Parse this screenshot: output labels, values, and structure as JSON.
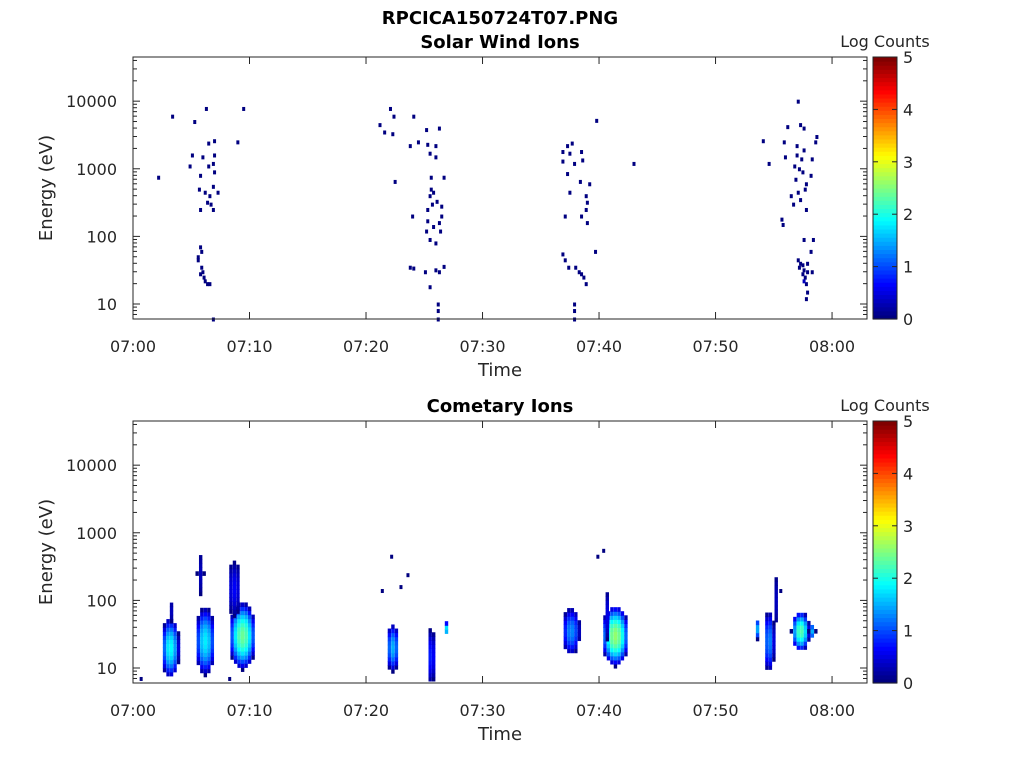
{
  "figure_title": "RPCICA150724T07.PNG",
  "chart_data": [
    {
      "type": "heatmap",
      "title": "Solar Wind Ions",
      "xlabel": "Time",
      "ylabel": "Energy (eV)",
      "x_ticks": [
        "07:00",
        "07:10",
        "07:20",
        "07:30",
        "07:40",
        "07:50",
        "08:00"
      ],
      "x_tick_minutes": [
        0,
        10,
        20,
        30,
        40,
        50,
        60
      ],
      "xlim_minutes": [
        0,
        63
      ],
      "yscale": "log",
      "ylim": [
        6,
        45000
      ],
      "y_ticks": [
        "10",
        "100",
        "1000",
        "10000"
      ],
      "y_tick_values": [
        10,
        100,
        1000,
        10000
      ],
      "colorbar": {
        "label": "Log Counts",
        "ticks": [
          "0",
          "1",
          "2",
          "3",
          "4",
          "5"
        ],
        "range": [
          0,
          5
        ],
        "colormap": "jet"
      },
      "cells": [
        [
          2.2,
          750,
          0
        ],
        [
          3.4,
          6000,
          0
        ],
        [
          5.3,
          5000,
          0
        ],
        [
          6.3,
          7800,
          0
        ],
        [
          9.5,
          7800,
          0
        ],
        [
          9.0,
          2500,
          0
        ],
        [
          6.5,
          2400,
          0
        ],
        [
          7.0,
          2600,
          0
        ],
        [
          5.1,
          1600,
          0
        ],
        [
          6.0,
          1500,
          0
        ],
        [
          7.0,
          1600,
          0
        ],
        [
          4.9,
          1100,
          0
        ],
        [
          6.5,
          1100,
          0
        ],
        [
          6.9,
          1200,
          0
        ],
        [
          5.8,
          800,
          0
        ],
        [
          7.0,
          900,
          0
        ],
        [
          5.7,
          500,
          0
        ],
        [
          6.2,
          450,
          0
        ],
        [
          6.6,
          400,
          0
        ],
        [
          6.9,
          550,
          0
        ],
        [
          7.3,
          450,
          0
        ],
        [
          6.4,
          320,
          0
        ],
        [
          6.7,
          300,
          0
        ],
        [
          5.8,
          250,
          0
        ],
        [
          6.9,
          250,
          0
        ],
        [
          5.8,
          70,
          0
        ],
        [
          5.9,
          60,
          0
        ],
        [
          5.6,
          50,
          0
        ],
        [
          5.6,
          45,
          0
        ],
        [
          5.9,
          35,
          0
        ],
        [
          6.0,
          30,
          0
        ],
        [
          5.8,
          28,
          0
        ],
        [
          6.1,
          25,
          0
        ],
        [
          6.2,
          22,
          0
        ],
        [
          6.4,
          20,
          0
        ],
        [
          6.6,
          20,
          0
        ],
        [
          6.9,
          6,
          0
        ],
        [
          21.2,
          4500,
          0
        ],
        [
          22.1,
          7800,
          0
        ],
        [
          22.4,
          6000,
          0
        ],
        [
          21.6,
          3500,
          0
        ],
        [
          22.3,
          3300,
          0
        ],
        [
          24.1,
          6000,
          0
        ],
        [
          25.2,
          3800,
          0
        ],
        [
          26.3,
          4000,
          0
        ],
        [
          23.8,
          2200,
          0
        ],
        [
          24.5,
          2500,
          0
        ],
        [
          25.3,
          2300,
          0
        ],
        [
          26.0,
          2200,
          0
        ],
        [
          25.5,
          1700,
          0
        ],
        [
          26.0,
          1500,
          0
        ],
        [
          25.6,
          750,
          0
        ],
        [
          26.7,
          750,
          0
        ],
        [
          22.5,
          650,
          0
        ],
        [
          25.6,
          500,
          0
        ],
        [
          25.8,
          450,
          0
        ],
        [
          25.5,
          400,
          0
        ],
        [
          26.1,
          330,
          0
        ],
        [
          25.7,
          300,
          0
        ],
        [
          26.5,
          280,
          0
        ],
        [
          25.3,
          250,
          0
        ],
        [
          24.0,
          200,
          0
        ],
        [
          25.3,
          170,
          0
        ],
        [
          26.5,
          200,
          0
        ],
        [
          26.3,
          160,
          0
        ],
        [
          25.8,
          140,
          0
        ],
        [
          25.2,
          120,
          0
        ],
        [
          26.4,
          120,
          0
        ],
        [
          25.5,
          90,
          0
        ],
        [
          26.0,
          80,
          0
        ],
        [
          23.8,
          35,
          0
        ],
        [
          24.1,
          34,
          0
        ],
        [
          25.1,
          30,
          0
        ],
        [
          26.0,
          32,
          0
        ],
        [
          26.3,
          30,
          0
        ],
        [
          26.7,
          36,
          0
        ],
        [
          25.5,
          18,
          0
        ],
        [
          26.2,
          10,
          0
        ],
        [
          26.2,
          8,
          0
        ],
        [
          26.2,
          6,
          0
        ],
        [
          37.3,
          2200,
          0
        ],
        [
          37.7,
          2400,
          0
        ],
        [
          36.9,
          1800,
          0
        ],
        [
          37.5,
          1700,
          0
        ],
        [
          38.5,
          1800,
          0
        ],
        [
          36.9,
          1300,
          0
        ],
        [
          37.9,
          1200,
          0
        ],
        [
          38.6,
          1350,
          0
        ],
        [
          39.8,
          5200,
          0
        ],
        [
          43.0,
          1200,
          0
        ],
        [
          37.3,
          850,
          0
        ],
        [
          38.4,
          650,
          0
        ],
        [
          39.2,
          600,
          0
        ],
        [
          37.5,
          450,
          0
        ],
        [
          38.9,
          400,
          0
        ],
        [
          39.0,
          320,
          0
        ],
        [
          38.9,
          250,
          0
        ],
        [
          37.1,
          200,
          0
        ],
        [
          38.5,
          200,
          0
        ],
        [
          39.0,
          160,
          0
        ],
        [
          39.7,
          60,
          0
        ],
        [
          36.9,
          55,
          0
        ],
        [
          37.1,
          45,
          0
        ],
        [
          37.4,
          35,
          0
        ],
        [
          38.0,
          35,
          0
        ],
        [
          38.3,
          30,
          0
        ],
        [
          38.5,
          28,
          0
        ],
        [
          38.7,
          25,
          0
        ],
        [
          38.9,
          20,
          0
        ],
        [
          37.9,
          10,
          0
        ],
        [
          37.9,
          8,
          0
        ],
        [
          37.9,
          6,
          0
        ],
        [
          57.1,
          10000,
          0
        ],
        [
          54.1,
          2600,
          0
        ],
        [
          56.2,
          4200,
          0
        ],
        [
          57.3,
          4500,
          0
        ],
        [
          57.6,
          4000,
          0
        ],
        [
          58.7,
          3000,
          0
        ],
        [
          55.9,
          2500,
          0
        ],
        [
          57.0,
          2200,
          0
        ],
        [
          58.6,
          2500,
          0
        ],
        [
          57.6,
          1900,
          0
        ],
        [
          57.0,
          1600,
          0
        ],
        [
          56.0,
          1500,
          0
        ],
        [
          57.4,
          1400,
          0
        ],
        [
          58.3,
          1400,
          0
        ],
        [
          54.6,
          1200,
          0
        ],
        [
          56.8,
          1100,
          0
        ],
        [
          57.2,
          1000,
          0
        ],
        [
          57.5,
          900,
          0
        ],
        [
          58.2,
          800,
          0
        ],
        [
          56.9,
          700,
          0
        ],
        [
          57.8,
          600,
          0
        ],
        [
          57.7,
          500,
          0
        ],
        [
          57.1,
          450,
          0
        ],
        [
          56.5,
          400,
          0
        ],
        [
          57.3,
          350,
          0
        ],
        [
          56.7,
          300,
          0
        ],
        [
          57.8,
          250,
          0
        ],
        [
          55.7,
          180,
          0
        ],
        [
          55.8,
          150,
          0
        ],
        [
          57.6,
          90,
          0
        ],
        [
          58.4,
          90,
          0
        ],
        [
          58.2,
          60,
          0
        ],
        [
          57.1,
          45,
          0
        ],
        [
          57.3,
          40,
          0
        ],
        [
          57.5,
          38,
          0
        ],
        [
          57.9,
          40,
          0
        ],
        [
          57.2,
          35,
          0
        ],
        [
          57.6,
          32,
          0
        ],
        [
          57.9,
          30,
          0
        ],
        [
          58.3,
          30,
          0
        ],
        [
          57.5,
          28,
          0
        ],
        [
          57.7,
          25,
          0
        ],
        [
          57.8,
          20,
          0
        ],
        [
          57.9,
          15,
          0
        ],
        [
          57.8,
          12,
          0
        ],
        [
          57.6,
          22,
          0.3
        ]
      ]
    },
    {
      "type": "heatmap",
      "title": "Cometary Ions",
      "xlabel": "Time",
      "ylabel": "Energy (eV)",
      "x_ticks": [
        "07:00",
        "07:10",
        "07:20",
        "07:30",
        "07:40",
        "07:50",
        "08:00"
      ],
      "x_tick_minutes": [
        0,
        10,
        20,
        30,
        40,
        50,
        60
      ],
      "xlim_minutes": [
        0,
        63
      ],
      "yscale": "log",
      "ylim": [
        6,
        45000
      ],
      "y_ticks": [
        "10",
        "100",
        "1000",
        "10000"
      ],
      "y_tick_values": [
        10,
        100,
        1000,
        10000
      ],
      "colorbar": {
        "label": "Log Counts",
        "ticks": [
          "0",
          "1",
          "2",
          "3",
          "4",
          "5"
        ],
        "range": [
          0,
          5
        ],
        "colormap": "jet"
      },
      "blobs": [
        {
          "t": 3.2,
          "e": 20,
          "dt": 0.8,
          "dlog": 0.45,
          "peak": 1.9
        },
        {
          "t": 3.3,
          "e": 70,
          "dt": 0.3,
          "dlog": 0.15,
          "peak": 0.3
        },
        {
          "t": 6.2,
          "e": 25,
          "dt": 0.9,
          "dlog": 0.5,
          "peak": 1.8
        },
        {
          "t": 5.8,
          "e": 250,
          "dt": 0.3,
          "dlog": 0.3,
          "peak": 0.3
        },
        {
          "t": 9.4,
          "e": 30,
          "dt": 1.2,
          "dlog": 0.5,
          "peak": 2.4
        },
        {
          "t": 8.7,
          "e": 150,
          "dt": 0.6,
          "dlog": 0.4,
          "peak": 0.6
        },
        {
          "t": 22.3,
          "e": 20,
          "dt": 0.6,
          "dlog": 0.35,
          "peak": 1.5
        },
        {
          "t": 25.6,
          "e": 15,
          "dt": 0.4,
          "dlog": 0.4,
          "peak": 0.8
        },
        {
          "t": 26.9,
          "e": 38,
          "dt": 0.3,
          "dlog": 0.1,
          "peak": 1.8
        },
        {
          "t": 37.6,
          "e": 35,
          "dt": 0.8,
          "dlog": 0.35,
          "peak": 1.3
        },
        {
          "t": 41.4,
          "e": 30,
          "dt": 1.2,
          "dlog": 0.45,
          "peak": 2.6
        },
        {
          "t": 40.7,
          "e": 60,
          "dt": 0.3,
          "dlog": 0.35,
          "peak": 0.5
        },
        {
          "t": 53.6,
          "e": 38,
          "dt": 0.3,
          "dlog": 0.15,
          "peak": 1.5
        },
        {
          "t": 54.6,
          "e": 25,
          "dt": 0.5,
          "dlog": 0.45,
          "peak": 1.3
        },
        {
          "t": 55.2,
          "e": 100,
          "dt": 0.3,
          "dlog": 0.35,
          "peak": 0.3
        },
        {
          "t": 57.3,
          "e": 35,
          "dt": 0.8,
          "dlog": 0.3,
          "peak": 2.3
        },
        {
          "t": 58.3,
          "e": 35,
          "dt": 0.3,
          "dlog": 0.12,
          "peak": 1.5
        }
      ],
      "cells": [
        [
          0.7,
          7,
          0
        ],
        [
          8.3,
          7,
          0
        ],
        [
          21.4,
          140,
          0
        ],
        [
          22.2,
          450,
          0
        ],
        [
          23.0,
          160,
          0
        ],
        [
          23.6,
          240,
          0
        ],
        [
          39.9,
          450,
          0
        ],
        [
          40.4,
          550,
          0
        ],
        [
          55.2,
          160,
          0
        ],
        [
          55.6,
          140,
          0
        ]
      ]
    }
  ]
}
